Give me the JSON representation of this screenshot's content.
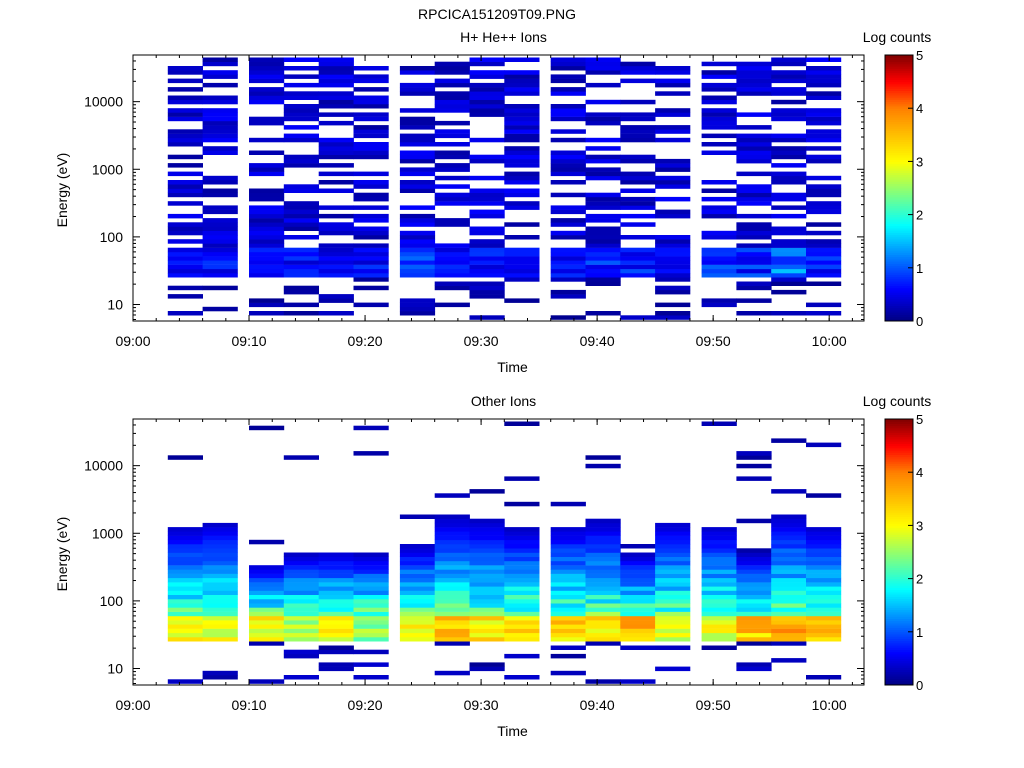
{
  "main_title": "RPCICA151209T09.PNG",
  "chart_data": [
    {
      "type": "heatmap",
      "title": "H+ He++ Ions",
      "xlabel": "Time",
      "ylabel": "Energy (eV)",
      "colorbar_label": "Log counts",
      "y_scale": "log",
      "xlim": [
        "09:00",
        "10:03"
      ],
      "ylim": [
        5.7,
        49000
      ],
      "x_tick_labels": [
        "09:00",
        "09:10",
        "09:20",
        "09:30",
        "09:40",
        "09:50",
        "10:00"
      ],
      "y_tick_labels": [
        "10",
        "100",
        "1000",
        "10000"
      ],
      "colorbar_range": [
        0,
        5
      ],
      "colorbar_tick_labels": [
        "0",
        "1",
        "2",
        "3",
        "4",
        "5"
      ],
      "colormap": [
        "#000080",
        "#0000ff",
        "#00ffff",
        "#ffff00",
        "#ff8000",
        "#ff0000",
        "#800000"
      ],
      "time_bins": [
        "09:03",
        "09:06",
        "09:10",
        "09:13",
        "09:16",
        "09:19",
        "09:23",
        "09:26",
        "09:29",
        "09:32",
        "09:36",
        "09:39",
        "09:42",
        "09:45",
        "09:49",
        "09:52",
        "09:55",
        "09:58"
      ],
      "energy_range_eV": [
        6,
        45000
      ],
      "counts_profile": {
        "description_free_data": "peak low-energy log counts per time bin (~30-60 eV)",
        "peak_values": [
          0.6,
          0.8,
          0.6,
          0.7,
          0.6,
          0.7,
          0.9,
          0.7,
          0.8,
          0.6,
          0.7,
          0.9,
          0.8,
          0.7,
          0.9,
          0.9,
          1.2,
          0.9
        ]
      }
    },
    {
      "type": "heatmap",
      "title": "Other Ions",
      "xlabel": "Time",
      "ylabel": "Energy (eV)",
      "colorbar_label": "Log counts",
      "y_scale": "log",
      "xlim": [
        "09:00",
        "10:03"
      ],
      "ylim": [
        5.7,
        49000
      ],
      "x_tick_labels": [
        "09:00",
        "09:10",
        "09:20",
        "09:30",
        "09:40",
        "09:50",
        "10:00"
      ],
      "y_tick_labels": [
        "10",
        "100",
        "1000",
        "10000"
      ],
      "colorbar_range": [
        0,
        5
      ],
      "colorbar_tick_labels": [
        "0",
        "1",
        "2",
        "3",
        "4",
        "5"
      ],
      "colormap": [
        "#000080",
        "#0000ff",
        "#00ffff",
        "#ffff00",
        "#ff8000",
        "#ff0000",
        "#800000"
      ],
      "time_bins": [
        "09:03",
        "09:06",
        "09:10",
        "09:13",
        "09:16",
        "09:19",
        "09:23",
        "09:26",
        "09:29",
        "09:32",
        "09:36",
        "09:39",
        "09:42",
        "09:45",
        "09:49",
        "09:52",
        "09:55",
        "09:58"
      ],
      "counts_profile": {
        "upper_energy_eV": [
          1300,
          1500,
          350,
          500,
          550,
          500,
          700,
          1800,
          1600,
          1200,
          1300,
          1600,
          500,
          1500,
          1300,
          500,
          1900,
          1300
        ],
        "peak_values": [
          3.0,
          3.0,
          3.1,
          2.7,
          3.0,
          2.5,
          3.1,
          3.4,
          3.3,
          3.3,
          3.4,
          3.3,
          3.6,
          3.0,
          2.9,
          3.5,
          3.8,
          3.5
        ]
      }
    }
  ]
}
